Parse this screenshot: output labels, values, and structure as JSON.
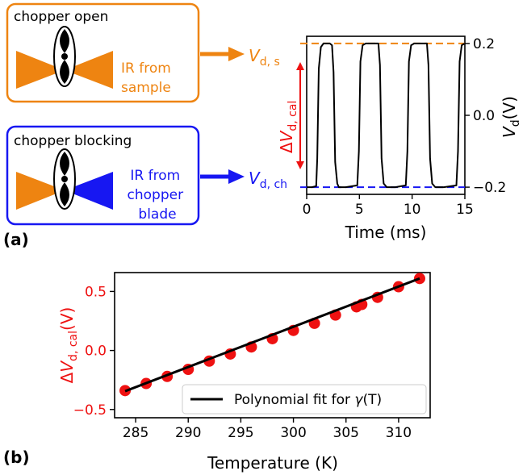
{
  "colors": {
    "orange": "#ee8411",
    "blue": "#1717f2",
    "red": "#ee1111",
    "black": "#000000"
  },
  "panel_a": {
    "label": "(a)",
    "box_open": {
      "title": "chopper open",
      "text_lines": [
        "IR from",
        "sample"
      ],
      "icon": "chopper-wheel-icon"
    },
    "box_blocking": {
      "title": "chopper blocking",
      "text_lines": [
        "IR from",
        "chopper",
        "blade"
      ],
      "icon": "chopper-wheel-icon"
    },
    "vds_label": {
      "base": "V",
      "sub": "d, s"
    },
    "vdch_label": {
      "base": "V",
      "sub": "d, ch"
    },
    "dv_label": {
      "prefix": "Δ",
      "base": "V",
      "sub": "d, cal"
    }
  },
  "panel_b": {
    "label": "(b)"
  },
  "chart_data": [
    {
      "type": "line",
      "panel": "a",
      "xlabel": "Time (ms)",
      "ylabel": {
        "base": "V",
        "sub": "d",
        "unit": "(V)"
      },
      "xlim": [
        0,
        15
      ],
      "ylim": [
        -0.22,
        0.22
      ],
      "xticks": [
        0,
        5,
        10,
        15
      ],
      "yticks": [
        0.2,
        0.0,
        -0.2
      ],
      "ytick_labels": [
        "0.2",
        "0.0",
        "−0.2"
      ],
      "y_axis_side": "right",
      "grid": false,
      "reference_lines": [
        {
          "y": 0.2,
          "color": "#ee8411",
          "style": "dashed"
        },
        {
          "y": -0.2,
          "color": "#1717f2",
          "style": "dashed"
        }
      ],
      "series": [
        {
          "color": "#000000",
          "x": [
            0.0,
            0.5,
            0.9,
            1.0,
            1.15,
            1.35,
            1.6,
            2.2,
            2.4,
            2.55,
            2.7,
            2.9,
            3.05,
            3.3,
            3.7,
            4.8,
            4.95,
            5.1,
            5.3,
            5.6,
            6.8,
            6.95,
            7.1,
            7.3,
            7.6,
            8.2,
            8.4,
            9.4,
            9.55,
            9.7,
            9.9,
            10.2,
            11.4,
            11.55,
            11.7,
            11.9,
            12.2,
            12.8,
            13.0,
            14.2,
            14.35,
            14.5,
            14.7,
            15.0
          ],
          "y": [
            -0.2,
            -0.2,
            -0.197,
            -0.12,
            0.13,
            0.19,
            0.2,
            0.2,
            0.195,
            0.12,
            -0.13,
            -0.19,
            -0.2,
            -0.2,
            -0.2,
            -0.195,
            -0.1,
            0.15,
            0.195,
            0.2,
            0.2,
            0.14,
            -0.12,
            -0.19,
            -0.2,
            -0.2,
            -0.2,
            -0.195,
            -0.1,
            0.15,
            0.195,
            0.2,
            0.2,
            0.14,
            -0.12,
            -0.19,
            -0.2,
            -0.2,
            -0.2,
            -0.195,
            -0.1,
            0.15,
            0.195,
            0.2
          ]
        }
      ]
    },
    {
      "type": "scatter",
      "panel": "b",
      "xlabel": "Temperature (K)",
      "ylabel": {
        "prefix": "Δ",
        "base": "V",
        "sub": "d, cal",
        "unit": "(V)"
      },
      "xlim": [
        283,
        313
      ],
      "ylim": [
        -0.57,
        0.66
      ],
      "xticks": [
        285,
        290,
        295,
        300,
        305,
        310
      ],
      "yticks": [
        0.5,
        0.0,
        -0.5
      ],
      "ytick_labels": [
        "0.5",
        "0.0",
        "−0.5"
      ],
      "grid": false,
      "legend": {
        "position": "lower-right",
        "text_main": "Polynomial fit for ",
        "text_sym": "γ",
        "text_arg": "(T)"
      },
      "series": [
        {
          "kind": "points",
          "color": "#ee1111",
          "x": [
            284,
            286,
            288,
            290,
            292,
            294,
            296,
            298,
            300,
            302,
            304,
            306,
            306.5,
            308,
            310,
            312
          ],
          "y": [
            -0.34,
            -0.28,
            -0.22,
            -0.16,
            -0.09,
            -0.03,
            0.03,
            0.1,
            0.17,
            0.23,
            0.3,
            0.37,
            0.39,
            0.45,
            0.54,
            0.61
          ]
        },
        {
          "kind": "fit",
          "color": "#000000",
          "x": [
            284,
            312
          ],
          "y": [
            -0.345,
            0.61
          ]
        }
      ]
    }
  ]
}
